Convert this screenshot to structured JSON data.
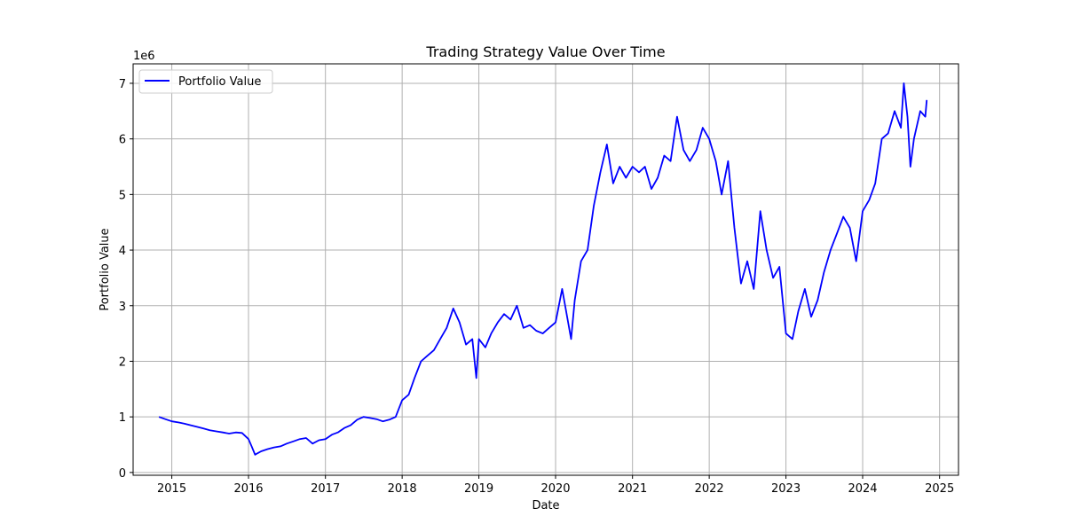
{
  "chart_data": {
    "type": "line",
    "title": "Trading Strategy Value Over Time",
    "xlabel": "Date",
    "ylabel": "Portfolio Value",
    "y_offset_label": "1e6",
    "x_ticks": [
      "2015",
      "2016",
      "2017",
      "2018",
      "2019",
      "2020",
      "2021",
      "2022",
      "2023",
      "2024",
      "2025"
    ],
    "y_ticks": [
      "0",
      "1",
      "2",
      "3",
      "4",
      "5",
      "6",
      "7"
    ],
    "xlim": [
      "2014-07-01",
      "2025-04-01"
    ],
    "ylim": [
      -50000,
      7350000
    ],
    "grid": true,
    "legend_position": "top-left",
    "colors": {
      "series": "#0000ff",
      "grid": "#b0b0b0",
      "axes": "#000000"
    },
    "series": [
      {
        "name": "Portfolio Value",
        "x": [
          "2014-11-01",
          "2014-12-01",
          "2015-01-01",
          "2015-02-01",
          "2015-03-01",
          "2015-04-01",
          "2015-05-01",
          "2015-06-01",
          "2015-07-01",
          "2015-08-01",
          "2015-09-01",
          "2015-10-01",
          "2015-11-01",
          "2015-12-01",
          "2016-01-01",
          "2016-01-15",
          "2016-02-01",
          "2016-02-15",
          "2016-03-01",
          "2016-04-01",
          "2016-05-01",
          "2016-06-01",
          "2016-07-01",
          "2016-08-01",
          "2016-09-01",
          "2016-10-01",
          "2016-11-01",
          "2016-12-01",
          "2017-01-01",
          "2017-02-01",
          "2017-03-01",
          "2017-04-01",
          "2017-05-01",
          "2017-06-01",
          "2017-07-01",
          "2017-08-01",
          "2017-09-01",
          "2017-10-01",
          "2017-11-01",
          "2017-12-01",
          "2018-01-01",
          "2018-02-01",
          "2018-03-01",
          "2018-04-01",
          "2018-05-01",
          "2018-06-01",
          "2018-07-01",
          "2018-08-01",
          "2018-09-01",
          "2018-10-01",
          "2018-11-01",
          "2018-12-01",
          "2018-12-20",
          "2019-01-01",
          "2019-02-01",
          "2019-03-01",
          "2019-04-01",
          "2019-05-01",
          "2019-06-01",
          "2019-07-01",
          "2019-08-01",
          "2019-09-01",
          "2019-10-01",
          "2019-11-01",
          "2019-12-01",
          "2020-01-01",
          "2020-02-01",
          "2020-02-20",
          "2020-03-15",
          "2020-04-01",
          "2020-05-01",
          "2020-06-01",
          "2020-07-01",
          "2020-08-01",
          "2020-09-01",
          "2020-10-01",
          "2020-11-01",
          "2020-12-01",
          "2021-01-01",
          "2021-02-01",
          "2021-03-01",
          "2021-04-01",
          "2021-05-01",
          "2021-06-01",
          "2021-07-01",
          "2021-08-01",
          "2021-09-01",
          "2021-10-01",
          "2021-11-01",
          "2021-12-01",
          "2022-01-01",
          "2022-02-01",
          "2022-03-01",
          "2022-04-01",
          "2022-05-01",
          "2022-06-01",
          "2022-07-01",
          "2022-08-01",
          "2022-09-01",
          "2022-10-01",
          "2022-11-01",
          "2022-12-01",
          "2023-01-01",
          "2023-02-01",
          "2023-03-01",
          "2023-04-01",
          "2023-05-01",
          "2023-06-01",
          "2023-07-01",
          "2023-08-01",
          "2023-09-01",
          "2023-10-01",
          "2023-11-01",
          "2023-12-01",
          "2024-01-01",
          "2024-02-01",
          "2024-03-01",
          "2024-04-01",
          "2024-05-01",
          "2024-06-01",
          "2024-07-01",
          "2024-07-15",
          "2024-08-01",
          "2024-08-15",
          "2024-09-01",
          "2024-10-01",
          "2024-10-25",
          "2024-11-01"
        ],
        "values": [
          1000000,
          960000,
          920000,
          900000,
          880000,
          850000,
          820000,
          790000,
          760000,
          740000,
          720000,
          700000,
          720000,
          710000,
          600000,
          480000,
          320000,
          350000,
          380000,
          420000,
          450000,
          470000,
          520000,
          560000,
          600000,
          620000,
          520000,
          580000,
          600000,
          680000,
          720000,
          800000,
          850000,
          950000,
          1000000,
          980000,
          960000,
          920000,
          950000,
          1000000,
          1300000,
          1400000,
          1700000,
          2000000,
          2100000,
          2200000,
          2400000,
          2600000,
          2950000,
          2700000,
          2300000,
          2400000,
          1700000,
          2400000,
          2250000,
          2500000,
          2700000,
          2850000,
          2750000,
          3000000,
          2600000,
          2650000,
          2550000,
          2500000,
          2600000,
          2700000,
          3300000,
          2900000,
          2400000,
          3100000,
          3800000,
          4000000,
          4800000,
          5400000,
          5900000,
          5200000,
          5500000,
          5300000,
          5500000,
          5400000,
          5500000,
          5100000,
          5300000,
          5700000,
          5600000,
          6400000,
          5800000,
          5600000,
          5800000,
          6200000,
          6000000,
          5600000,
          5000000,
          5600000,
          4400000,
          3400000,
          3800000,
          3300000,
          4700000,
          4000000,
          3500000,
          3700000,
          2500000,
          2400000,
          2900000,
          3300000,
          2800000,
          3100000,
          3600000,
          4000000,
          4300000,
          4600000,
          4400000,
          3800000,
          4700000,
          4900000,
          5200000,
          6000000,
          6100000,
          6500000,
          6200000,
          7000000,
          6400000,
          5500000,
          6000000,
          6500000,
          6400000,
          6700000
        ]
      }
    ]
  }
}
